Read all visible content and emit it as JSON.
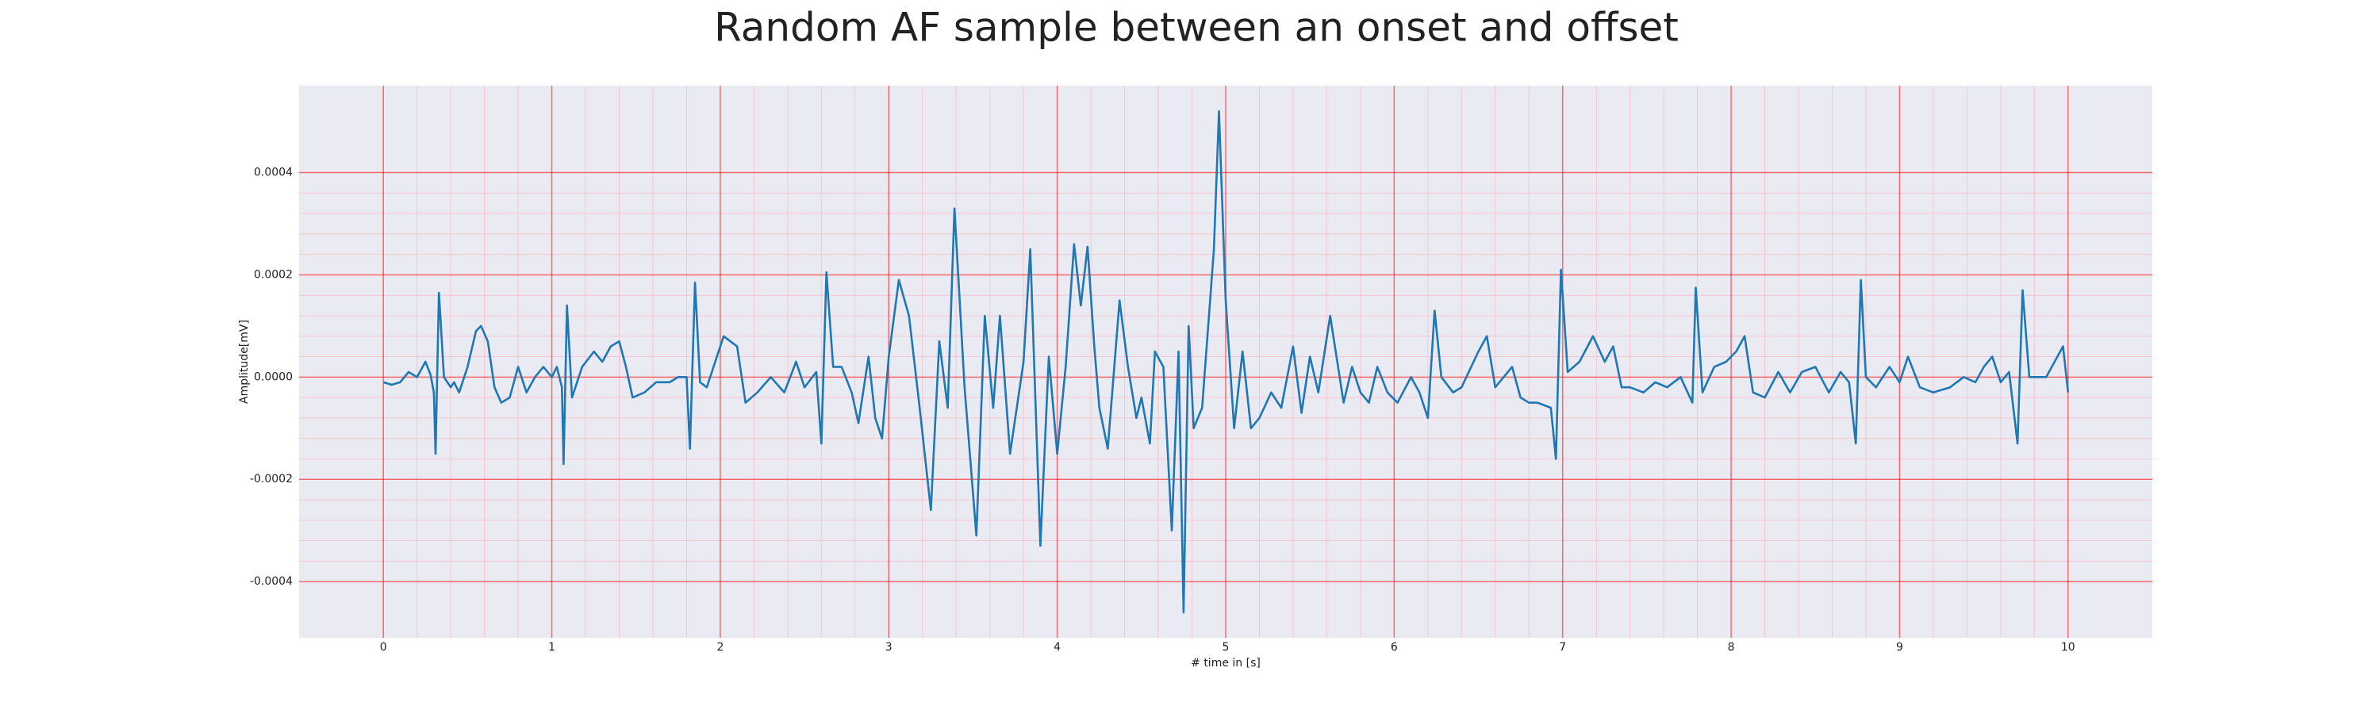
{
  "chart_data": {
    "type": "line",
    "title": "Random AF sample between an onset and offset",
    "x_label": "# time in [s]",
    "y_label": "Amplitude[mV]",
    "x": [
      0,
      0.05,
      0.1,
      0.15,
      0.2,
      0.25,
      0.28,
      0.3,
      0.31,
      0.33,
      0.36,
      0.4,
      0.42,
      0.45,
      0.5,
      0.55,
      0.58,
      0.62,
      0.66,
      0.7,
      0.75,
      0.8,
      0.85,
      0.9,
      0.95,
      1.0,
      1.03,
      1.06,
      1.07,
      1.09,
      1.12,
      1.18,
      1.25,
      1.3,
      1.35,
      1.4,
      1.44,
      1.48,
      1.55,
      1.62,
      1.7,
      1.75,
      1.8,
      1.82,
      1.85,
      1.88,
      1.92,
      1.97,
      2.02,
      2.1,
      2.15,
      2.22,
      2.3,
      2.38,
      2.45,
      2.5,
      2.57,
      2.6,
      2.63,
      2.67,
      2.72,
      2.78,
      2.82,
      2.88,
      2.92,
      2.96,
      3.0,
      3.06,
      3.12,
      3.18,
      3.25,
      3.3,
      3.35,
      3.39,
      3.45,
      3.52,
      3.57,
      3.62,
      3.66,
      3.72,
      3.8,
      3.84,
      3.9,
      3.95,
      4.0,
      4.05,
      4.1,
      4.14,
      4.18,
      4.22,
      4.25,
      4.3,
      4.37,
      4.42,
      4.47,
      4.5,
      4.55,
      4.58,
      4.63,
      4.68,
      4.72,
      4.75,
      4.78,
      4.81,
      4.86,
      4.93,
      4.96,
      5.0,
      5.05,
      5.1,
      5.15,
      5.2,
      5.27,
      5.33,
      5.4,
      5.45,
      5.5,
      5.55,
      5.62,
      5.7,
      5.75,
      5.8,
      5.85,
      5.9,
      5.96,
      6.02,
      6.1,
      6.15,
      6.2,
      6.24,
      6.28,
      6.35,
      6.4,
      6.5,
      6.55,
      6.6,
      6.7,
      6.75,
      6.8,
      6.85,
      6.93,
      6.96,
      6.99,
      7.03,
      7.1,
      7.18,
      7.25,
      7.3,
      7.35,
      7.4,
      7.48,
      7.55,
      7.62,
      7.7,
      7.77,
      7.79,
      7.83,
      7.9,
      7.97,
      8.03,
      8.08,
      8.13,
      8.2,
      8.28,
      8.35,
      8.42,
      8.5,
      8.58,
      8.65,
      8.7,
      8.74,
      8.77,
      8.8,
      8.86,
      8.94,
      9.0,
      9.05,
      9.12,
      9.2,
      9.3,
      9.38,
      9.45,
      9.5,
      9.55,
      9.6,
      9.65,
      9.7,
      9.73,
      9.77,
      9.82,
      9.87,
      9.92,
      9.97,
      10.0
    ],
    "series": [
      {
        "color": "#1f77b4",
        "values": [
          -1e-05,
          -1.5e-05,
          -1e-05,
          1e-05,
          0,
          3e-05,
          5e-06,
          -3e-05,
          -0.00015,
          0.000165,
          0,
          -2e-05,
          -1e-05,
          -3e-05,
          2e-05,
          9e-05,
          0.0001,
          7e-05,
          -2e-05,
          -5e-05,
          -4e-05,
          2e-05,
          -3e-05,
          0,
          2e-05,
          0,
          2e-05,
          -2e-05,
          -0.00017,
          0.00014,
          -4e-05,
          2e-05,
          5e-05,
          3e-05,
          6e-05,
          7e-05,
          2e-05,
          -4e-05,
          -3e-05,
          -1e-05,
          -1e-05,
          0,
          0,
          -0.00014,
          0.000185,
          -1e-05,
          -2e-05,
          3e-05,
          8e-05,
          6e-05,
          -5e-05,
          -3e-05,
          0,
          -3e-05,
          3e-05,
          -2e-05,
          1e-05,
          -0.00013,
          0.000205,
          2e-05,
          2e-05,
          -3e-05,
          -9e-05,
          4e-05,
          -8e-05,
          -0.00012,
          4e-05,
          0.00019,
          0.00012,
          -5e-05,
          -0.00026,
          7e-05,
          -6e-05,
          0.00033,
          -2e-05,
          -0.00031,
          0.00012,
          -6e-05,
          0.00012,
          -0.00015,
          3e-05,
          0.00025,
          -0.00033,
          4e-05,
          -0.00015,
          2e-05,
          0.00026,
          0.00014,
          0.000255,
          6e-05,
          -6e-05,
          -0.00014,
          0.00015,
          2e-05,
          -8e-05,
          -4e-05,
          -0.00013,
          5e-05,
          2e-05,
          -0.0003,
          5e-05,
          -0.00046,
          0.0001,
          -0.0001,
          -6e-05,
          0.00025,
          0.00052,
          0.00015,
          -0.0001,
          5e-05,
          -0.0001,
          -8e-05,
          -3e-05,
          -6e-05,
          6e-05,
          -7e-05,
          4e-05,
          -3e-05,
          0.00012,
          -5e-05,
          2e-05,
          -3e-05,
          -5e-05,
          2e-05,
          -3e-05,
          -5e-05,
          0,
          -3e-05,
          -8e-05,
          0.00013,
          0,
          -3e-05,
          -2e-05,
          5e-05,
          8e-05,
          -2e-05,
          2e-05,
          -4e-05,
          -5e-05,
          -5e-05,
          -6e-05,
          -0.00016,
          0.00021,
          1e-05,
          3e-05,
          8e-05,
          3e-05,
          6e-05,
          -2e-05,
          -2e-05,
          -3e-05,
          -1e-05,
          -2e-05,
          0,
          -5e-05,
          0.000175,
          -3e-05,
          2e-05,
          3e-05,
          5e-05,
          8e-05,
          -3e-05,
          -4e-05,
          1e-05,
          -3e-05,
          1e-05,
          2e-05,
          -3e-05,
          1e-05,
          -1e-05,
          -0.00013,
          0.00019,
          0,
          -2e-05,
          2e-05,
          -1e-05,
          4e-05,
          -2e-05,
          -3e-05,
          -2e-05,
          0,
          -1e-05,
          2e-05,
          4e-05,
          -1e-05,
          1e-05,
          -0.00013,
          0.00017,
          0,
          0,
          0,
          3e-05,
          6e-05,
          -3e-05
        ]
      }
    ],
    "xlim": [
      -0.5,
      10.5
    ],
    "ylim": [
      -0.00051,
      0.00057
    ],
    "xticks": [
      0,
      1,
      2,
      3,
      4,
      5,
      6,
      7,
      8,
      9,
      10
    ],
    "yticks": [
      -0.0004,
      -0.0002,
      {
        "value": 0,
        "label": "0.0000"
      },
      0.0002,
      0.0004
    ],
    "grid": true,
    "minor_grid": true
  }
}
